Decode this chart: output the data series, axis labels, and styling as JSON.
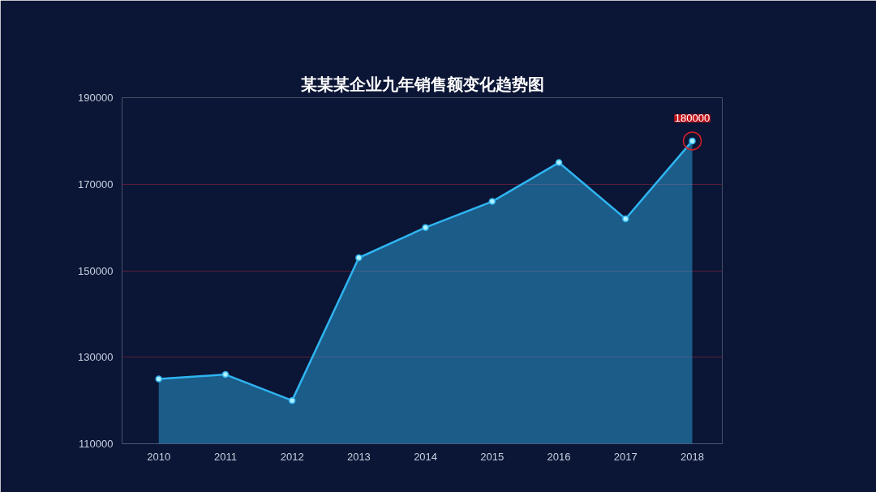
{
  "chart_data": {
    "type": "area",
    "title": "某某某企业九年销售额变化趋势图",
    "categories": [
      "2010",
      "2011",
      "2012",
      "2013",
      "2014",
      "2015",
      "2016",
      "2017",
      "2018"
    ],
    "series": [
      {
        "color": "#2fb4f0",
        "values": [
          125000,
          126000,
          120000,
          153000,
          160000,
          166000,
          175000,
          162000,
          180000
        ]
      }
    ],
    "ylim": [
      110000,
      190000
    ],
    "yticks": [
      110000,
      130000,
      150000,
      170000,
      190000
    ],
    "grid": "y",
    "marker": "circle",
    "line_style": "solid",
    "annotations": [
      {
        "text": "180000",
        "x": "2018",
        "y": 180000
      }
    ]
  }
}
